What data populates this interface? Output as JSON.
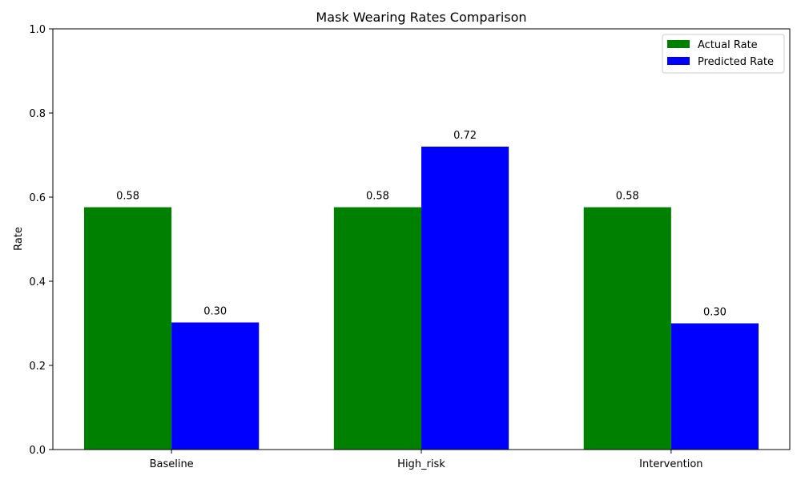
{
  "chart_data": {
    "type": "bar",
    "title": "Mask Wearing Rates Comparison",
    "xlabel": "",
    "ylabel": "Rate",
    "categories": [
      "Baseline",
      "High_risk",
      "Intervention"
    ],
    "series": [
      {
        "name": "Actual Rate",
        "values": [
          0.576,
          0.576,
          0.576
        ],
        "labels": [
          "0.58",
          "0.58",
          "0.58"
        ],
        "color": "#008000"
      },
      {
        "name": "Predicted Rate",
        "values": [
          0.302,
          0.72,
          0.3
        ],
        "labels": [
          "0.30",
          "0.72",
          "0.30"
        ],
        "color": "#0000ff"
      }
    ],
    "ylim": [
      0,
      1.0
    ],
    "yticks": [
      "0.0",
      "0.2",
      "0.4",
      "0.6",
      "0.8",
      "1.0"
    ],
    "grid": false,
    "legend_position": "top-right"
  }
}
